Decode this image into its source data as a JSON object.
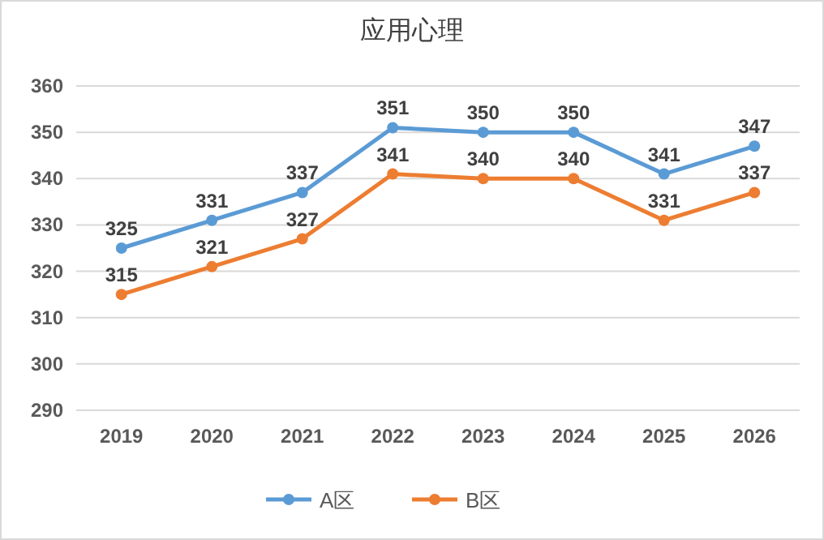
{
  "chart_data": {
    "type": "line",
    "title": "应用心理",
    "categories": [
      "2019",
      "2020",
      "2021",
      "2022",
      "2023",
      "2024",
      "2025",
      "2026"
    ],
    "series": [
      {
        "name": "A区",
        "color": "#5b9bd5",
        "values": [
          325,
          331,
          337,
          351,
          350,
          350,
          341,
          347
        ]
      },
      {
        "name": "B区",
        "color": "#ed7d31",
        "values": [
          315,
          321,
          327,
          341,
          340,
          340,
          331,
          337
        ]
      }
    ],
    "ylim": [
      290,
      360
    ],
    "yticks": [
      290,
      300,
      310,
      320,
      330,
      340,
      350,
      360
    ],
    "grid": "y",
    "legend": "bottom",
    "marker": "circle",
    "line_style": "solid",
    "data_labels": true
  }
}
